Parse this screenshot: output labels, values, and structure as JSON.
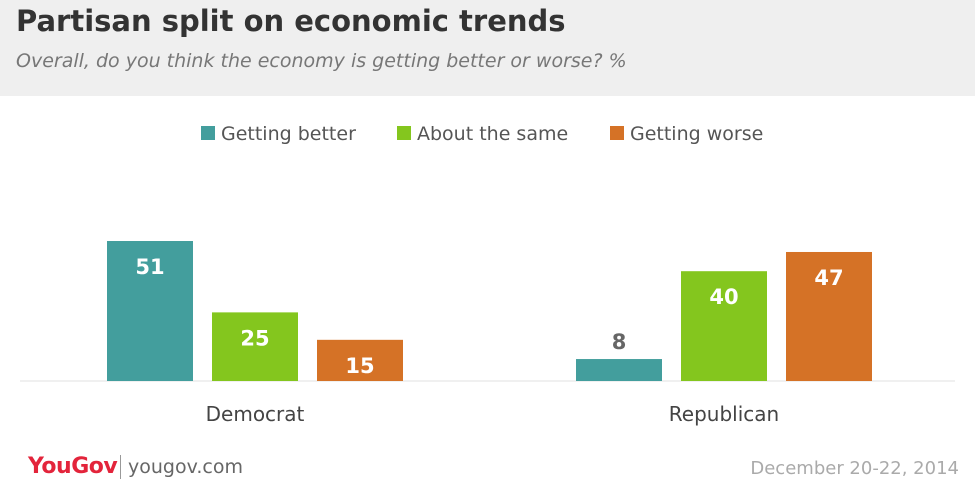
{
  "header": {
    "title": "Partisan split on economic trends",
    "subtitle": "Overall, do you think the economy is getting better or worse? %"
  },
  "footer": {
    "logo": "YouGov",
    "site": "yougov.com",
    "date": "December 20-22, 2014"
  },
  "chart_data": {
    "type": "bar",
    "title": "Partisan split on economic trends",
    "subtitle": "Overall, do you think the economy is getting better or worse? %",
    "categories": [
      "Democrat",
      "Republican"
    ],
    "series": [
      {
        "name": "Getting better",
        "values": [
          51,
          8
        ],
        "color": "#439e9d"
      },
      {
        "name": "About the same",
        "values": [
          25,
          40
        ],
        "color": "#84c61e"
      },
      {
        "name": "Getting worse",
        "values": [
          15,
          47
        ],
        "color": "#d57226"
      }
    ],
    "ylim": [
      0,
      55
    ],
    "grid": false,
    "legend": "top-center",
    "data_labels": true
  }
}
